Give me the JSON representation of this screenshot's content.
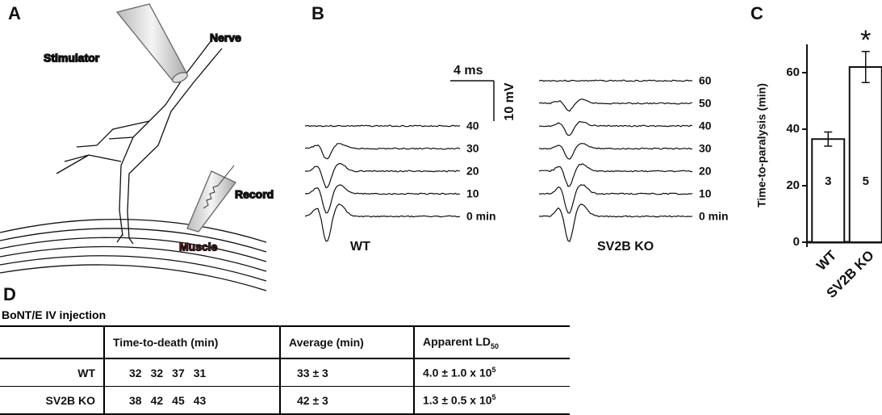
{
  "panels": {
    "a": "A",
    "b": "B",
    "c": "C",
    "d": "D"
  },
  "diagram": {
    "stimulator": "Stimulator",
    "nerve": "Nerve",
    "record": "Record",
    "muscle": "Muscle"
  },
  "traces": {
    "scale_time": "4 ms",
    "scale_voltage": "10 mV",
    "wt": {
      "name": "WT",
      "times": [
        "40",
        "30",
        "20",
        "10",
        "0 min"
      ]
    },
    "ko": {
      "name": "SV2B KO",
      "times": [
        "60",
        "50",
        "40",
        "30",
        "20",
        "10",
        "0 min"
      ]
    }
  },
  "chart_data": {
    "type": "bar",
    "ylabel": "Time-to-paralysis (min)",
    "categories": [
      "WT",
      "SV2B KO"
    ],
    "values": [
      36.5,
      62
    ],
    "errors": [
      2.5,
      5.5
    ],
    "n_labels": [
      "3",
      "5"
    ],
    "annotation": "*",
    "color": "#ffffff",
    "ylim": [
      0,
      70
    ],
    "yticks": [
      0,
      20,
      40,
      60
    ]
  },
  "table": {
    "caption": "BoNT/E IV injection",
    "header": [
      "Time-to-death (min)",
      "Average (min)",
      {
        "text": "Apparent LD",
        "sub": "50"
      }
    ],
    "rows": [
      {
        "label": "WT",
        "deaths": [
          32,
          32,
          37,
          31
        ],
        "average": "33 ± 3",
        "ld50": {
          "text": "4.0 ± 1.0 x 10",
          "sup": "5"
        }
      },
      {
        "label": "SV2B KO",
        "deaths": [
          38,
          42,
          45,
          43
        ],
        "average": "42 ± 3",
        "ld50": {
          "text": "1.3 ± 0.5 x 10",
          "sup": "5"
        }
      }
    ]
  }
}
